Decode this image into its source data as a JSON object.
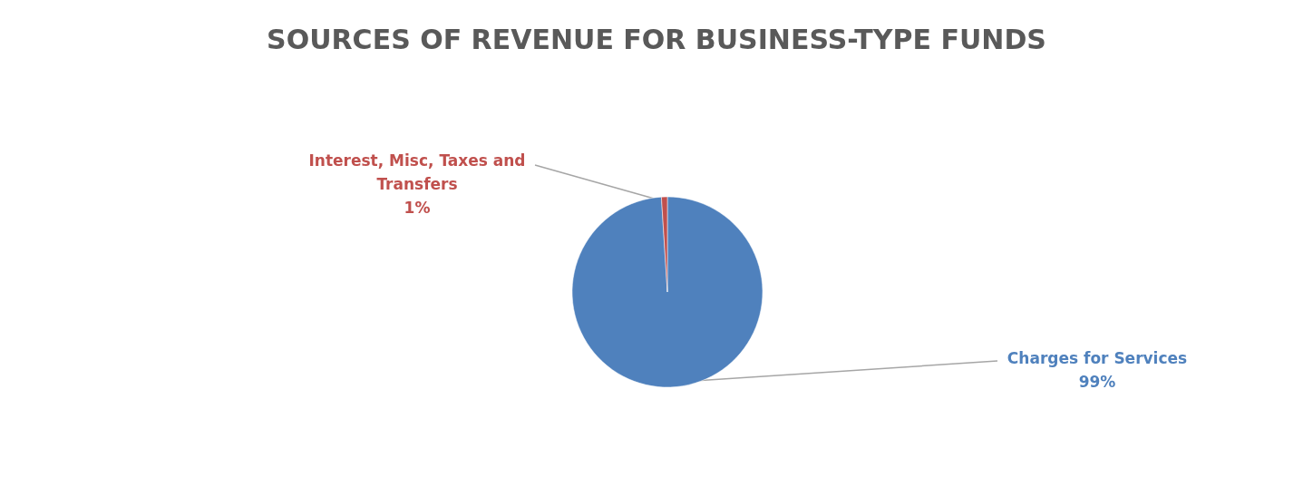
{
  "chart_data": {
    "type": "pie",
    "title": "SOURCES OF REVENUE FOR BUSINESS-TYPE FUNDS",
    "categories": [
      "Charges for Services",
      "Interest, Misc, Taxes and Transfers"
    ],
    "values": [
      99,
      1
    ],
    "colors": [
      "#4f81bd",
      "#c0504d"
    ],
    "value_labels": [
      "99%",
      "1%"
    ]
  }
}
